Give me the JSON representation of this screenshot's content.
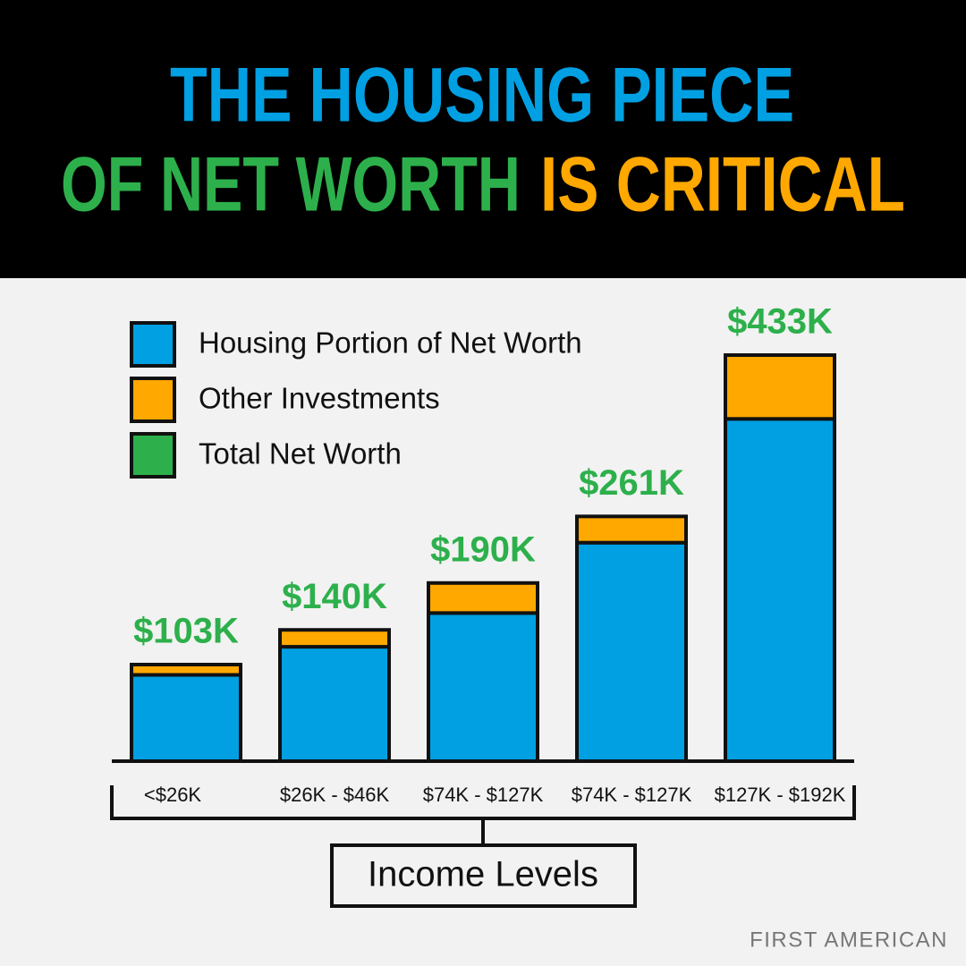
{
  "chart_data": {
    "type": "stacked-bar",
    "title_lines": [
      "THE HOUSING PIECE",
      "OF NET WORTH",
      "IS CRITICAL"
    ],
    "categories": [
      "<$26K",
      "$26K - $46K",
      "$74K - $127K",
      "$74K - $127K",
      "$127K - $192K"
    ],
    "series": [
      {
        "name": "Housing Portion of Net Worth",
        "color": "#00a0e3",
        "values": [
          92,
          122,
          158,
          233,
          365
        ]
      },
      {
        "name": "Other Investments",
        "color": "#ffa800",
        "values": [
          11,
          18,
          32,
          28,
          68
        ]
      }
    ],
    "totals": {
      "name": "Total Net Worth",
      "color": "#2db04b",
      "values": [
        103,
        140,
        190,
        261,
        433
      ],
      "value_labels": [
        "$103K",
        "$140K",
        "$190K",
        "$261K",
        "$433K"
      ]
    },
    "xlabel": "Income Levels",
    "source": "FIRST AMERICAN"
  }
}
